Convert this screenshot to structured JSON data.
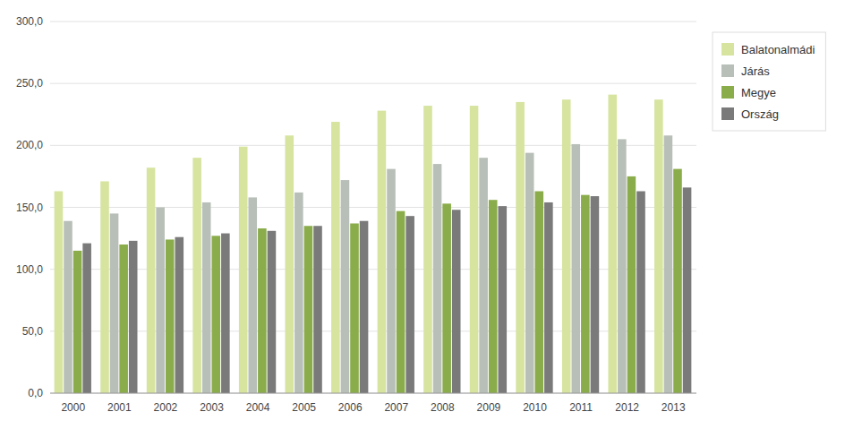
{
  "chart_data": {
    "type": "bar",
    "categories": [
      "2000",
      "2001",
      "2002",
      "2003",
      "2004",
      "2005",
      "2006",
      "2007",
      "2008",
      "2009",
      "2010",
      "2011",
      "2012",
      "2013"
    ],
    "series": [
      {
        "name": "Balatonalmádi",
        "color": "#d6e4a0",
        "values": [
          163,
          171,
          182,
          190,
          199,
          208,
          219,
          228,
          232,
          232,
          235,
          237,
          241,
          237
        ]
      },
      {
        "name": "Járás",
        "color": "#b8bfb8",
        "values": [
          139,
          145,
          150,
          154,
          158,
          162,
          172,
          181,
          185,
          190,
          194,
          201,
          205,
          208
        ]
      },
      {
        "name": "Megye",
        "color": "#8aac4a",
        "values": [
          115,
          120,
          124,
          127,
          133,
          135,
          137,
          147,
          153,
          156,
          163,
          160,
          175,
          181
        ]
      },
      {
        "name": "Ország",
        "color": "#7a7a7a",
        "values": [
          121,
          123,
          126,
          129,
          131,
          135,
          139,
          143,
          148,
          151,
          154,
          159,
          163,
          166
        ]
      }
    ],
    "ylim": [
      0,
      300
    ],
    "yticks": [
      {
        "value": 0,
        "label": "0,0"
      },
      {
        "value": 50,
        "label": "50,0"
      },
      {
        "value": 100,
        "label": "100,0"
      },
      {
        "value": 150,
        "label": "150,0"
      },
      {
        "value": 200,
        "label": "200,0"
      },
      {
        "value": 250,
        "label": "250,0"
      },
      {
        "value": 300,
        "label": "300,0"
      }
    ],
    "grid": true,
    "legend": "right"
  }
}
